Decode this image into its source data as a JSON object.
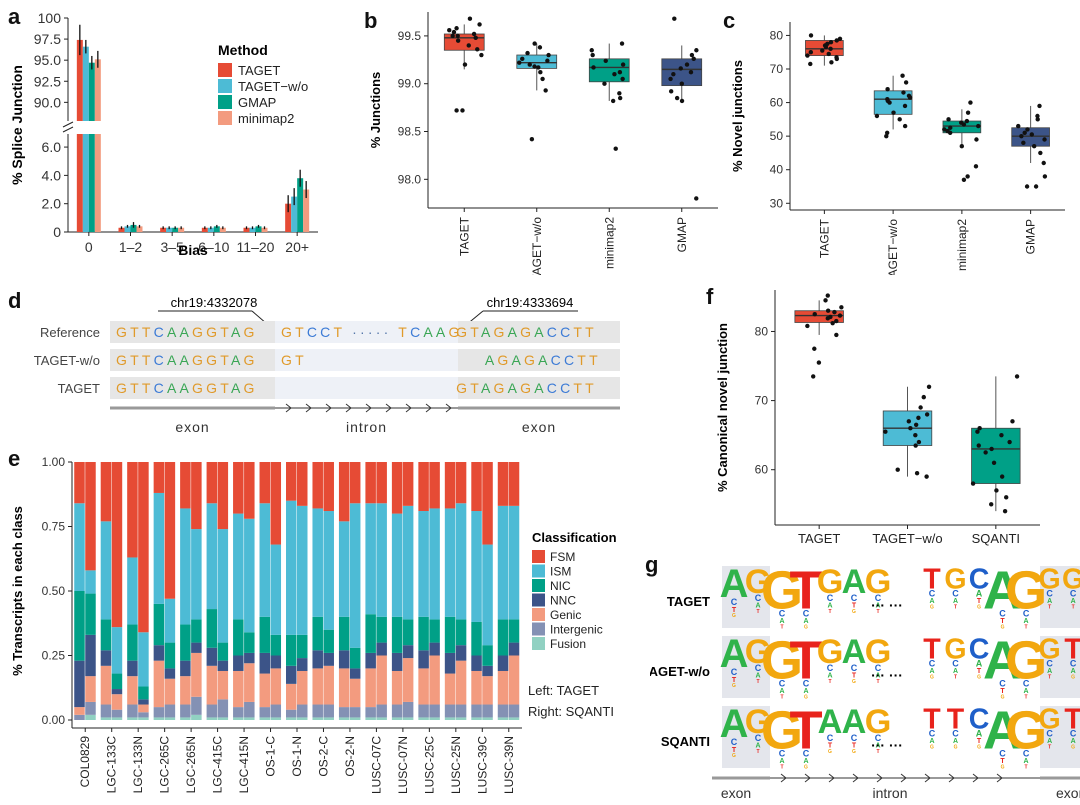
{
  "labels": {
    "a": "a",
    "b": "b",
    "c": "c",
    "d": "d",
    "e": "e",
    "f": "f",
    "g": "g"
  },
  "colors": {
    "TAGET": "#e64b35",
    "TAGET-w/o": "#4dbbd5",
    "GMAP": "#00a087",
    "minimap2": "#f39b7f",
    "gmap_box": "#3c5488",
    "FSM": "#e64b35",
    "ISM": "#4dbbd5",
    "NIC": "#00a087",
    "NNC": "#3c5488",
    "Genic": "#f39b7f",
    "Intergenic": "#8491b4",
    "Fusion": "#91d1c2"
  },
  "chart_data": [
    {
      "id": "a",
      "type": "bar",
      "xlabel": "Bias",
      "ylabel": "% Splice Junction",
      "legend_title": "Method",
      "categories": [
        "0",
        "1–2",
        "3–5",
        "6–10",
        "11–20",
        "20+"
      ],
      "upper_ticks": [
        "90.0",
        "92.5",
        "95.0",
        "97.5",
        "100"
      ],
      "lower_ticks": [
        "0",
        "2.0",
        "4.0",
        "6.0"
      ],
      "ylim_upper": [
        88.5,
        100
      ],
      "ylim_lower": [
        0,
        6.5
      ],
      "series": [
        {
          "name": "TAGET",
          "values": [
            97.4,
            0.3,
            0.3,
            0.3,
            0.3,
            2.0
          ],
          "err": [
            1.8,
            0.1,
            0.1,
            0.1,
            0.1,
            0.6
          ]
        },
        {
          "name": "TAGET−w/o",
          "values": [
            96.6,
            0.4,
            0.3,
            0.3,
            0.3,
            2.5
          ],
          "err": [
            0.8,
            0.1,
            0.1,
            0.1,
            0.1,
            0.6
          ]
        },
        {
          "name": "GMAP",
          "values": [
            94.7,
            0.5,
            0.3,
            0.4,
            0.4,
            3.8
          ],
          "err": [
            0.8,
            0.2,
            0.1,
            0.1,
            0.1,
            0.6
          ]
        },
        {
          "name": "minimap2",
          "values": [
            95.1,
            0.4,
            0.3,
            0.3,
            0.3,
            3.0
          ],
          "err": [
            1.0,
            0.1,
            0.1,
            0.1,
            0.1,
            0.6
          ]
        }
      ]
    },
    {
      "id": "b",
      "type": "box",
      "ylabel": "% Junctions",
      "ylim": [
        97.7,
        99.75
      ],
      "ticks": [
        "98.0",
        "98.5",
        "99.0",
        "99.5"
      ],
      "categories": [
        "TAGET",
        "TAGET−w/o",
        "minimap2",
        "GMAP"
      ],
      "boxes": [
        {
          "q1": 99.35,
          "med": 99.48,
          "q3": 99.52,
          "lo": 99.15,
          "hi": 99.62,
          "pts": [
            99.68,
            99.62,
            99.58,
            99.56,
            99.54,
            99.52,
            99.5,
            99.5,
            99.48,
            99.45,
            99.4,
            99.36,
            99.3,
            99.2,
            98.72,
            98.72
          ]
        },
        {
          "q1": 99.16,
          "med": 99.22,
          "q3": 99.3,
          "lo": 98.93,
          "hi": 99.42,
          "pts": [
            99.42,
            99.38,
            99.32,
            99.3,
            99.26,
            99.24,
            99.22,
            99.2,
            99.18,
            99.17,
            99.12,
            99.05,
            98.93,
            98.42
          ]
        },
        {
          "q1": 99.02,
          "med": 99.17,
          "q3": 99.26,
          "lo": 98.82,
          "hi": 99.42,
          "pts": [
            99.42,
            99.35,
            99.3,
            99.24,
            99.2,
            99.17,
            99.12,
            99.1,
            99.05,
            99.0,
            98.9,
            98.85,
            98.82,
            98.32
          ]
        },
        {
          "q1": 98.98,
          "med": 99.15,
          "q3": 99.26,
          "lo": 98.82,
          "hi": 99.4,
          "pts": [
            99.68,
            99.35,
            99.3,
            99.26,
            99.2,
            99.16,
            99.12,
            99.1,
            99.05,
            99.0,
            98.92,
            98.85,
            98.82,
            97.8
          ]
        }
      ]
    },
    {
      "id": "c",
      "type": "box",
      "ylabel": "% Novel junctions",
      "ylim": [
        28,
        84
      ],
      "ticks": [
        "30",
        "40",
        "50",
        "60",
        "70",
        "80"
      ],
      "categories": [
        "TAGET",
        "TAGET−w/o",
        "minimap2",
        "GMAP"
      ],
      "boxes": [
        {
          "q1": 74,
          "med": 76,
          "q3": 78.5,
          "lo": 71,
          "hi": 80,
          "pts": [
            80,
            79,
            78.5,
            78,
            77.5,
            77,
            76.5,
            76,
            75.5,
            75,
            74.5,
            74,
            73.5,
            73,
            72,
            71.5
          ]
        },
        {
          "q1": 56.5,
          "med": 61,
          "q3": 63.5,
          "lo": 52,
          "hi": 68,
          "pts": [
            68,
            66,
            64,
            63,
            62,
            61.5,
            61,
            60.5,
            60,
            59,
            57,
            56,
            55,
            53,
            51,
            50
          ]
        },
        {
          "q1": 51,
          "med": 53,
          "q3": 54.5,
          "lo": 47,
          "hi": 58,
          "pts": [
            60,
            57,
            55,
            54.5,
            54,
            53.5,
            53,
            52.5,
            52,
            51.5,
            51,
            49,
            47,
            41,
            38,
            37
          ]
        },
        {
          "q1": 47,
          "med": 50,
          "q3": 52.5,
          "lo": 42,
          "hi": 59,
          "pts": [
            59,
            56,
            55,
            53,
            52,
            51,
            50.5,
            50,
            49,
            48,
            47,
            45,
            42,
            38,
            35,
            35
          ]
        }
      ]
    },
    {
      "id": "d",
      "type": "table",
      "coord_left": "chr19:4332078",
      "coord_right": "chr19:4333694",
      "rows": [
        {
          "name": "Reference",
          "left": "GTTCAAGGTAG",
          "mid": "GTCCT ····· TCAAG",
          "right": "GTAGAGACCTT"
        },
        {
          "name": "TAGET-w/o",
          "left": "GTTCAAGGTAG",
          "mid": "GT",
          "right": "AGAGACCTT"
        },
        {
          "name": "TAGET",
          "left": "GTTCAAGGTAG",
          "mid": "",
          "right": "GTAGAGACCTT"
        }
      ],
      "regions": [
        "exon",
        "intron",
        "exon"
      ]
    },
    {
      "id": "e",
      "type": "bar",
      "stacked": true,
      "ylabel": "% Transcripts in each class",
      "ticks": [
        "0.00",
        "0.25",
        "0.50",
        "0.75",
        "1.00"
      ],
      "legend_title": "Classification",
      "classes": [
        "FSM",
        "ISM",
        "NIC",
        "NNC",
        "Genic",
        "Intergenic",
        "Fusion"
      ],
      "note_left": "Left: TAGET",
      "note_right": "Right: SQANTI",
      "categories": [
        "COL0829",
        "LGC-133C",
        "LGC-133N",
        "LGC-265C",
        "LGC-265N",
        "LGC-415C",
        "LGC-415N",
        "OS-1-C",
        "OS-1-N",
        "OS-2-C",
        "OS-2-N",
        "LUSC-07C",
        "LUSC-07N",
        "LUSC-25C",
        "LUSC-25N",
        "LUSC-39C",
        "LUSC-39N"
      ],
      "pairs": [
        [
          [
            0.16,
            0.34,
            0.27,
            0.18,
            0.03,
            0.02,
            0.0
          ],
          [
            0.42,
            0.09,
            0.16,
            0.16,
            0.1,
            0.05,
            0.02
          ]
        ],
        [
          [
            0.23,
            0.38,
            0.12,
            0.06,
            0.15,
            0.05,
            0.01
          ],
          [
            0.64,
            0.18,
            0.06,
            0.02,
            0.06,
            0.03,
            0.01
          ]
        ],
        [
          [
            0.37,
            0.26,
            0.14,
            0.06,
            0.11,
            0.05,
            0.01
          ],
          [
            0.66,
            0.21,
            0.05,
            0.02,
            0.03,
            0.02,
            0.01
          ]
        ],
        [
          [
            0.12,
            0.43,
            0.16,
            0.06,
            0.18,
            0.04,
            0.01
          ],
          [
            0.53,
            0.17,
            0.1,
            0.04,
            0.1,
            0.05,
            0.01
          ]
        ],
        [
          [
            0.18,
            0.45,
            0.14,
            0.06,
            0.11,
            0.05,
            0.01
          ],
          [
            0.26,
            0.35,
            0.09,
            0.04,
            0.17,
            0.07,
            0.02
          ]
        ],
        [
          [
            0.16,
            0.41,
            0.15,
            0.07,
            0.15,
            0.05,
            0.01
          ],
          [
            0.26,
            0.44,
            0.07,
            0.04,
            0.11,
            0.07,
            0.01
          ]
        ],
        [
          [
            0.2,
            0.41,
            0.14,
            0.06,
            0.14,
            0.04,
            0.01
          ],
          [
            0.22,
            0.44,
            0.08,
            0.04,
            0.15,
            0.06,
            0.01
          ]
        ],
        [
          [
            0.16,
            0.44,
            0.14,
            0.08,
            0.13,
            0.04,
            0.01
          ],
          [
            0.32,
            0.35,
            0.08,
            0.05,
            0.14,
            0.05,
            0.01
          ]
        ],
        [
          [
            0.15,
            0.52,
            0.12,
            0.07,
            0.1,
            0.03,
            0.01
          ],
          [
            0.17,
            0.5,
            0.09,
            0.05,
            0.13,
            0.05,
            0.01
          ]
        ],
        [
          [
            0.18,
            0.42,
            0.13,
            0.07,
            0.14,
            0.05,
            0.01
          ],
          [
            0.19,
            0.46,
            0.09,
            0.05,
            0.15,
            0.05,
            0.01
          ]
        ],
        [
          [
            0.23,
            0.37,
            0.13,
            0.07,
            0.15,
            0.04,
            0.01
          ],
          [
            0.16,
            0.56,
            0.08,
            0.04,
            0.11,
            0.04,
            0.01
          ]
        ],
        [
          [
            0.16,
            0.43,
            0.15,
            0.06,
            0.15,
            0.04,
            0.01
          ],
          [
            0.16,
            0.44,
            0.1,
            0.05,
            0.19,
            0.05,
            0.01
          ]
        ],
        [
          [
            0.2,
            0.4,
            0.14,
            0.07,
            0.13,
            0.05,
            0.01
          ],
          [
            0.17,
            0.44,
            0.1,
            0.05,
            0.17,
            0.06,
            0.01
          ]
        ],
        [
          [
            0.19,
            0.41,
            0.13,
            0.07,
            0.14,
            0.05,
            0.01
          ],
          [
            0.18,
            0.43,
            0.09,
            0.05,
            0.19,
            0.05,
            0.01
          ]
        ],
        [
          [
            0.18,
            0.42,
            0.14,
            0.08,
            0.12,
            0.05,
            0.01
          ],
          [
            0.16,
            0.45,
            0.1,
            0.06,
            0.17,
            0.05,
            0.01
          ]
        ],
        [
          [
            0.19,
            0.43,
            0.13,
            0.06,
            0.13,
            0.05,
            0.01
          ],
          [
            0.32,
            0.39,
            0.08,
            0.04,
            0.11,
            0.05,
            0.01
          ]
        ],
        [
          [
            0.17,
            0.44,
            0.14,
            0.06,
            0.13,
            0.05,
            0.01
          ],
          [
            0.17,
            0.44,
            0.09,
            0.05,
            0.19,
            0.05,
            0.01
          ]
        ]
      ]
    },
    {
      "id": "f",
      "type": "box",
      "ylabel": "% Canonical novel junction",
      "ylim": [
        52,
        86
      ],
      "ticks": [
        "60",
        "70",
        "80"
      ],
      "categories": [
        "TAGET",
        "TAGET−w/o",
        "SQANTI"
      ],
      "boxes": [
        {
          "q1": 81.3,
          "med": 82.3,
          "q3": 83.0,
          "lo": 79.5,
          "hi": 84.5,
          "pts": [
            85.2,
            84.5,
            83.5,
            83.0,
            82.8,
            82.5,
            82.3,
            82.1,
            81.9,
            81.5,
            81.2,
            80.8,
            79.5,
            77.5,
            75.5,
            73.5
          ]
        },
        {
          "q1": 63.5,
          "med": 66.0,
          "q3": 68.5,
          "lo": 59.0,
          "hi": 72.0,
          "pts": [
            72.0,
            70.5,
            69.0,
            68.0,
            67.5,
            67.0,
            66.5,
            66.0,
            65.5,
            65.0,
            64.0,
            63.5,
            60.0,
            59.5,
            59.0
          ]
        },
        {
          "q1": 58.0,
          "med": 63.0,
          "q3": 66.0,
          "lo": 54.0,
          "hi": 73.5,
          "pts": [
            73.5,
            67.0,
            66.0,
            65.5,
            65.0,
            64.0,
            63.5,
            63.0,
            62.5,
            61.0,
            59.0,
            58.0,
            57.0,
            56.0,
            55.0,
            54.0
          ]
        }
      ]
    },
    {
      "id": "g",
      "type": "diagram",
      "rows": [
        "TAGET",
        "TAGET-w/o",
        "SQANTI"
      ],
      "dots": "··· ···",
      "regions": [
        "exon",
        "intron",
        "exon"
      ],
      "donor_top": [
        "A",
        "G",
        "G",
        "T",
        "G",
        "A",
        "G"
      ],
      "acceptor_top": [
        "T",
        "C",
        "C",
        "A",
        "G",
        "G"
      ],
      "logos": [
        {
          "donor": [
            "AGGTGAG"
          ],
          "acceptor": [
            "TGCAGGG"
          ]
        },
        {
          "donor": [
            "AGGTGAG"
          ],
          "acceptor": [
            "TGCAGGT"
          ]
        },
        {
          "donor": [
            "AGGTAAG"
          ],
          "acceptor": [
            "TTCAGGT"
          ]
        }
      ]
    }
  ]
}
